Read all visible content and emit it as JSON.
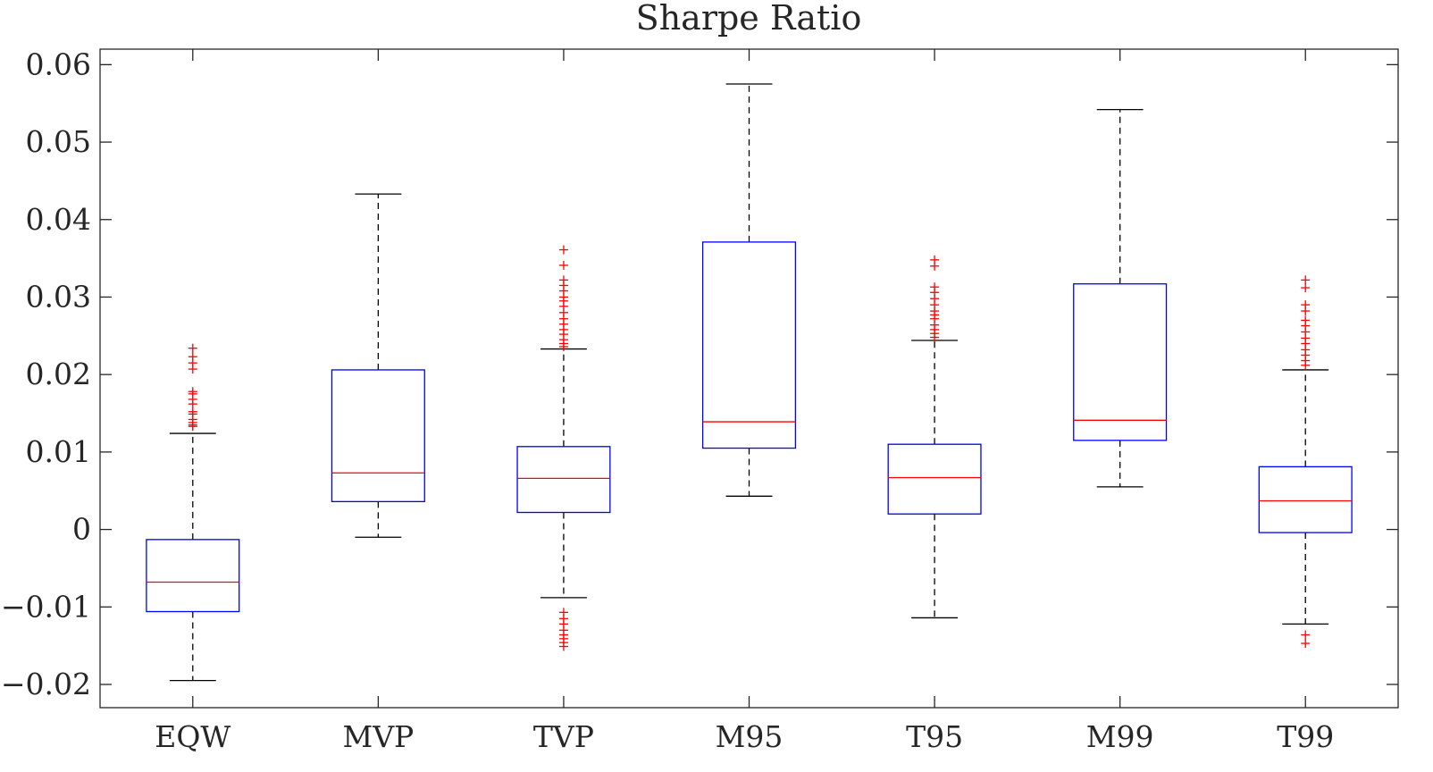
{
  "chart_data": {
    "type": "boxplot",
    "title": "Sharpe Ratio",
    "xlabel": "",
    "ylabel": "",
    "ylim": [
      -0.023,
      0.062
    ],
    "yticks": [
      -0.02,
      -0.01,
      0,
      0.01,
      0.02,
      0.03,
      0.04,
      0.05,
      0.06
    ],
    "ytick_labels": [
      "−0.02",
      "−0.01",
      "0",
      "0.01",
      "0.02",
      "0.03",
      "0.04",
      "0.05",
      "0.06"
    ],
    "categories": [
      "EQW",
      "MVP",
      "TVP",
      "M95",
      "T95",
      "M99",
      "T99"
    ],
    "grid": false,
    "colors": {
      "box": "#0000ff",
      "median": "#ff0000",
      "whisker": "#000000",
      "outlier": "#ff0000",
      "axes": "#262626"
    },
    "boxes": [
      {
        "whisker_low": -0.0195,
        "q1": -0.0106,
        "median": -0.0068,
        "q3": -0.0013,
        "whisker_high": 0.0124,
        "outliers": [
          0.0133,
          0.0135,
          0.0138,
          0.0142,
          0.0149,
          0.0152,
          0.0162,
          0.0168,
          0.0175,
          0.0178,
          0.0207,
          0.0215,
          0.0223,
          0.0234
        ]
      },
      {
        "whisker_low": -0.001,
        "q1": 0.0036,
        "median": 0.0073,
        "q3": 0.0206,
        "whisker_high": 0.0433,
        "outliers": []
      },
      {
        "whisker_low": -0.0088,
        "q1": 0.0022,
        "median": 0.0066,
        "q3": 0.0107,
        "whisker_high": 0.0233,
        "outliers": [
          0.0236,
          0.024,
          0.0245,
          0.0252,
          0.0258,
          0.0265,
          0.0272,
          0.028,
          0.0288,
          0.0295,
          0.03,
          0.0308,
          0.0315,
          0.0322,
          0.0341,
          0.0361,
          -0.0107,
          -0.0115,
          -0.0122,
          -0.013,
          -0.0136,
          -0.0141,
          -0.0146,
          -0.0151
        ]
      },
      {
        "whisker_low": 0.0043,
        "q1": 0.0105,
        "median": 0.0139,
        "q3": 0.0371,
        "whisker_high": 0.0575,
        "outliers": []
      },
      {
        "whisker_low": -0.0114,
        "q1": 0.002,
        "median": 0.0067,
        "q3": 0.011,
        "whisker_high": 0.0244,
        "outliers": [
          0.0248,
          0.0253,
          0.0258,
          0.0264,
          0.0272,
          0.0277,
          0.0282,
          0.029,
          0.0298,
          0.0306,
          0.0313,
          0.034,
          0.0348
        ]
      },
      {
        "whisker_low": 0.0055,
        "q1": 0.0115,
        "median": 0.0141,
        "q3": 0.0317,
        "whisker_high": 0.0542,
        "outliers": []
      },
      {
        "whisker_low": -0.0122,
        "q1": -0.0004,
        "median": 0.0037,
        "q3": 0.0081,
        "whisker_high": 0.0206,
        "outliers": [
          0.0212,
          0.0218,
          0.0225,
          0.0232,
          0.024,
          0.0247,
          0.0255,
          0.0263,
          0.027,
          0.0282,
          0.029,
          0.0312,
          0.0322,
          -0.0136,
          -0.0147
        ]
      }
    ]
  }
}
